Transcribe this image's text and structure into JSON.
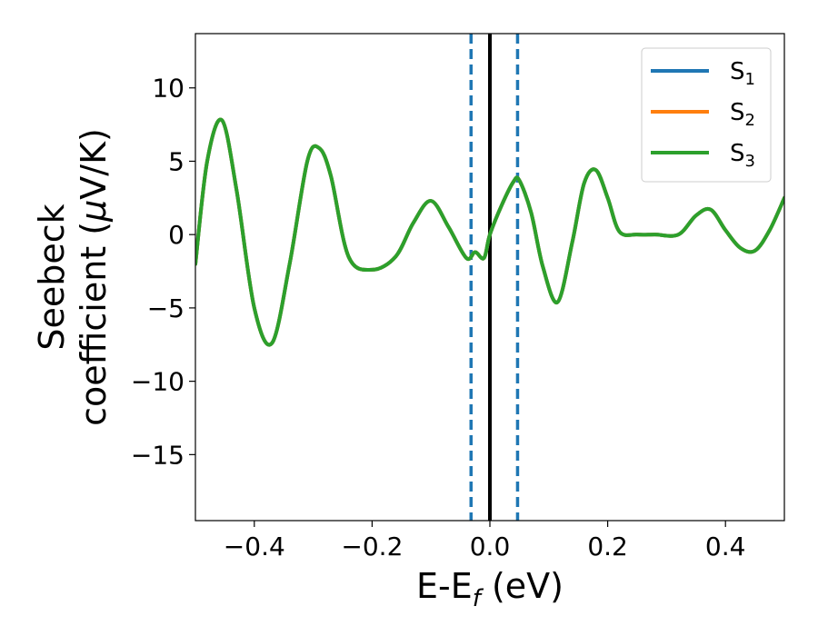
{
  "chart_data": {
    "type": "line",
    "xlabel": {
      "base": "E-E",
      "sub": "f",
      "suffix": " (eV)"
    },
    "ylabel": {
      "line1": "Seebeck",
      "line2_prefix": "coefficient  (",
      "line2_mu": "μ",
      "line2_suffix": "V/K)"
    },
    "xlim": [
      -0.5,
      0.5
    ],
    "ylim": [
      -19.5,
      13.7
    ],
    "xticks": [
      -0.4,
      -0.2,
      0.0,
      0.2,
      0.4
    ],
    "xtick_labels": [
      "−0.4",
      "−0.2",
      "0.0",
      "0.2",
      "0.4"
    ],
    "yticks": [
      10,
      5,
      0,
      -5,
      -10,
      -15
    ],
    "ytick_labels": [
      "10",
      "5",
      "0",
      "−5",
      "−10",
      "−15"
    ],
    "legend_position": "top-right",
    "vlines": [
      {
        "x": -0.032,
        "style": "dashed",
        "color": "#1f77b4"
      },
      {
        "x": 0.047,
        "style": "dashed",
        "color": "#1f77b4"
      },
      {
        "x": 0.0,
        "style": "solid",
        "color": "#000000"
      }
    ],
    "x": [
      -0.5,
      -0.48,
      -0.455,
      -0.43,
      -0.4,
      -0.37,
      -0.34,
      -0.31,
      -0.29,
      -0.27,
      -0.24,
      -0.2,
      -0.16,
      -0.13,
      -0.1,
      -0.07,
      -0.04,
      -0.025,
      -0.01,
      0.0,
      0.02,
      0.04,
      0.05,
      0.07,
      0.09,
      0.115,
      0.14,
      0.16,
      0.18,
      0.2,
      0.22,
      0.25,
      0.28,
      0.32,
      0.35,
      0.375,
      0.4,
      0.425,
      0.45,
      0.475,
      0.5
    ],
    "series": [
      {
        "name": "S",
        "sub": "1",
        "color": "#1f77b4",
        "values": [
          -2.0,
          5.0,
          7.8,
          3.0,
          -5.0,
          -7.4,
          -2.0,
          5.0,
          5.9,
          4.0,
          -1.5,
          -2.4,
          -1.5,
          0.8,
          2.3,
          0.5,
          -1.6,
          -1.2,
          -1.6,
          0.0,
          2.0,
          3.6,
          3.7,
          1.5,
          -2.2,
          -4.6,
          -0.5,
          3.5,
          4.4,
          2.5,
          0.2,
          0.0,
          0.0,
          0.0,
          1.3,
          1.7,
          0.3,
          -0.9,
          -1.1,
          0.3,
          2.5
        ]
      },
      {
        "name": "S",
        "sub": "2",
        "color": "#ff7f0e",
        "values": [
          -2.0,
          5.0,
          7.8,
          3.0,
          -5.0,
          -7.4,
          -2.0,
          5.0,
          5.9,
          4.0,
          -1.5,
          -2.4,
          -1.5,
          0.8,
          2.3,
          0.5,
          -1.6,
          -1.2,
          -1.6,
          0.0,
          2.0,
          3.6,
          3.7,
          1.5,
          -2.2,
          -4.6,
          -0.5,
          3.5,
          4.4,
          2.5,
          0.2,
          0.0,
          0.0,
          0.0,
          1.3,
          1.7,
          0.3,
          -0.9,
          -1.1,
          0.3,
          2.5
        ]
      },
      {
        "name": "S",
        "sub": "3",
        "color": "#2ca02c",
        "values": [
          -2.0,
          5.0,
          7.8,
          3.0,
          -5.0,
          -7.4,
          -2.0,
          5.0,
          5.9,
          4.0,
          -1.5,
          -2.4,
          -1.5,
          0.8,
          2.3,
          0.5,
          -1.6,
          -1.2,
          -1.6,
          0.0,
          2.0,
          3.6,
          3.7,
          1.5,
          -2.2,
          -4.6,
          -0.5,
          3.5,
          4.4,
          2.5,
          0.2,
          0.0,
          0.0,
          0.0,
          1.3,
          1.7,
          0.3,
          -0.9,
          -1.1,
          0.3,
          2.5
        ]
      }
    ]
  }
}
